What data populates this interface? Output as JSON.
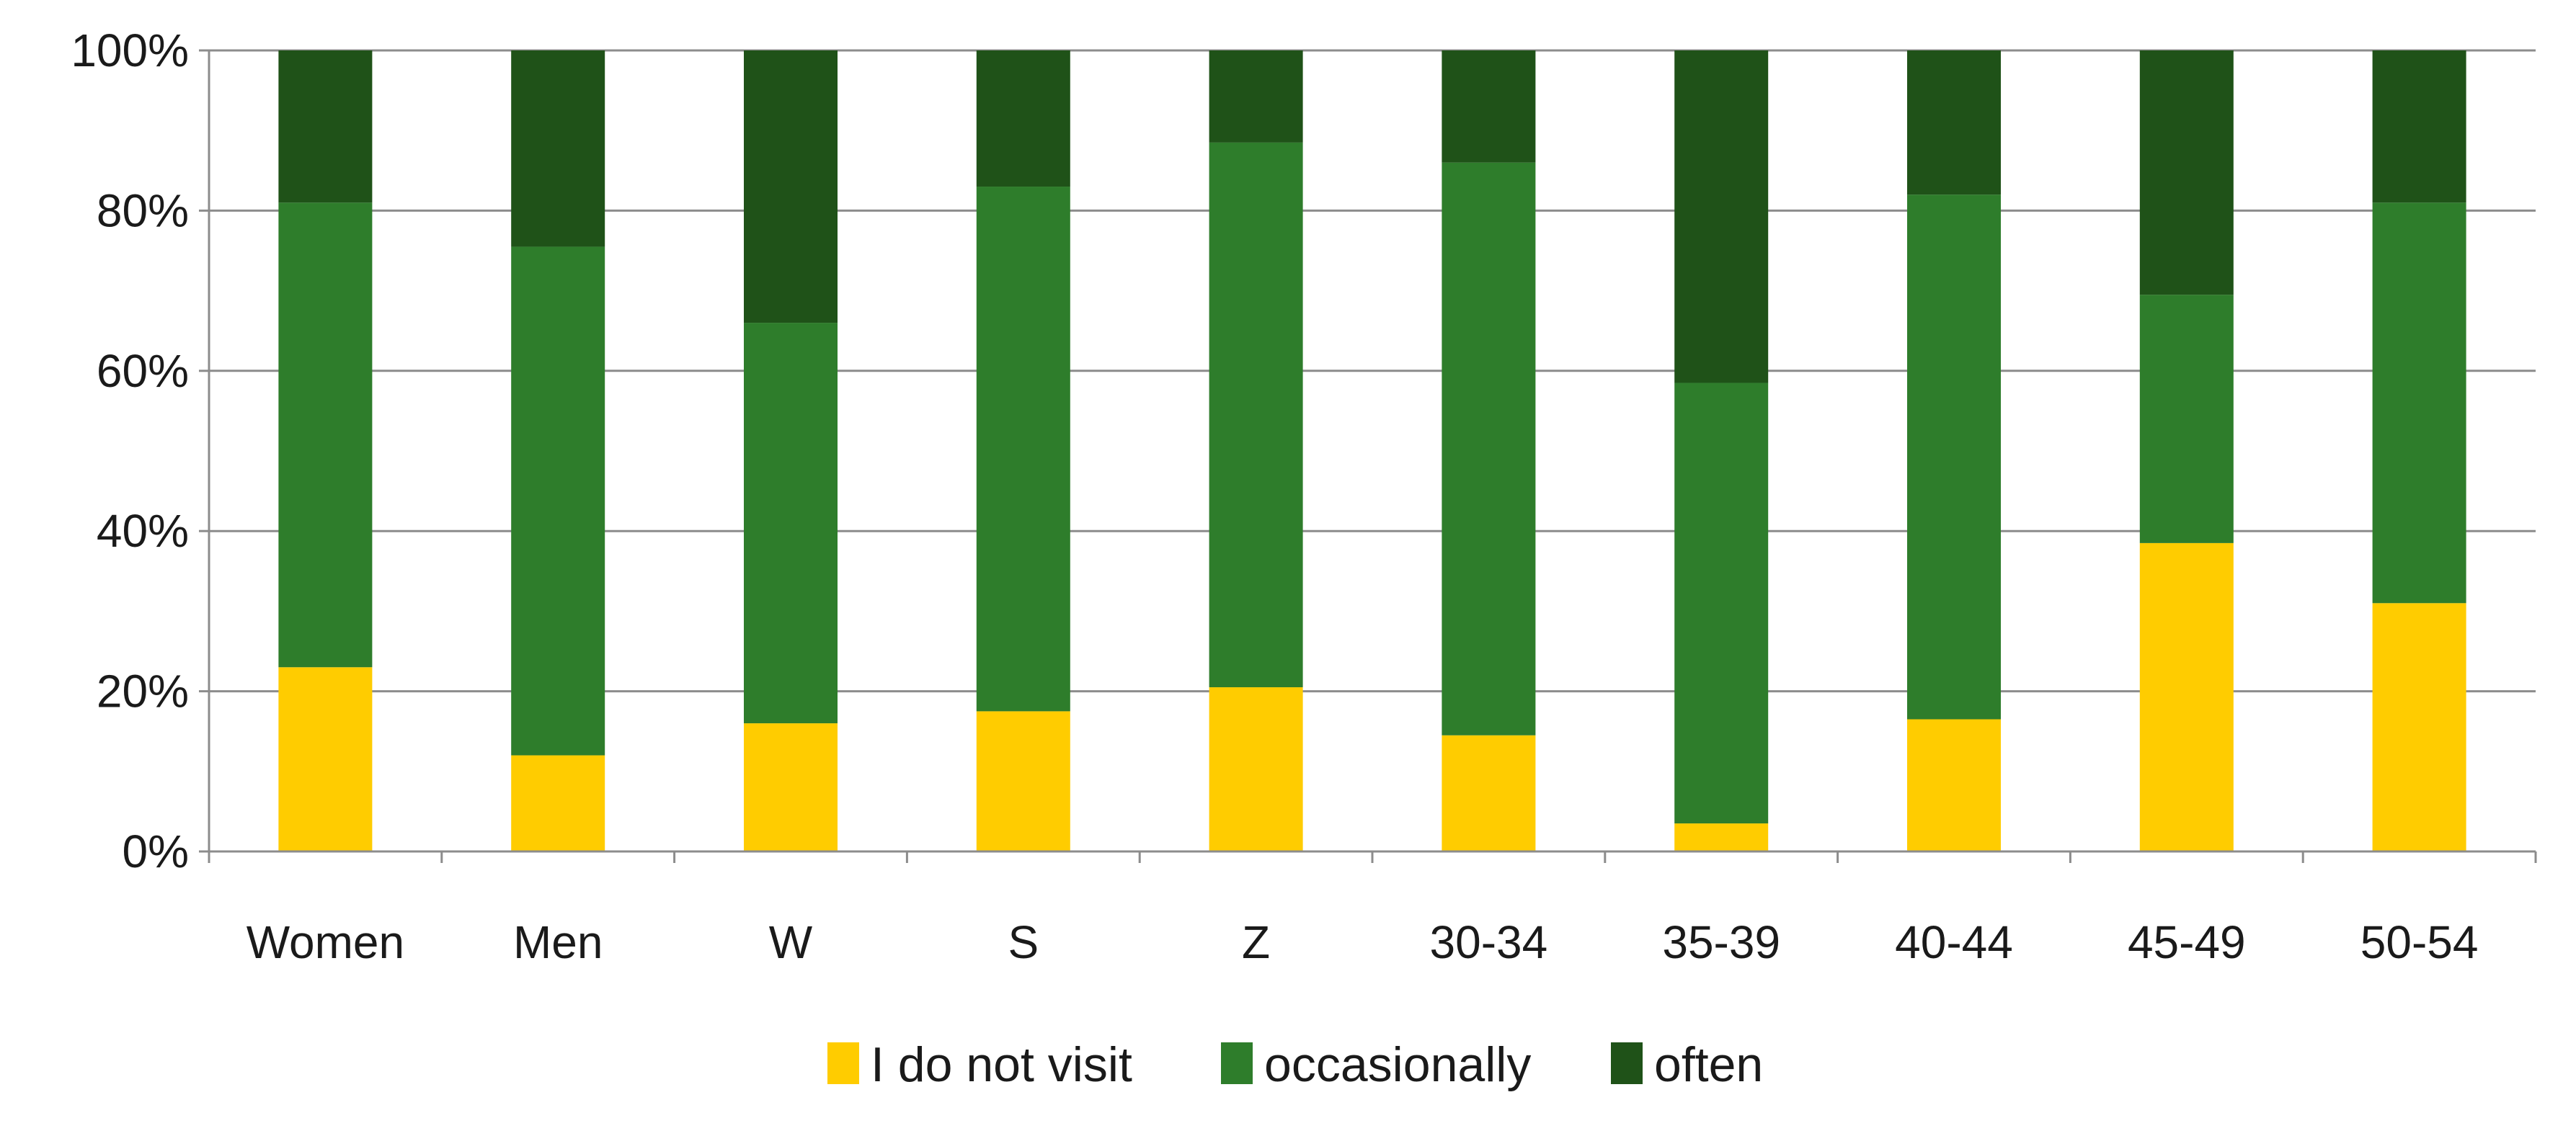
{
  "chart_data": {
    "type": "bar",
    "stacked": true,
    "percent_stacked": true,
    "categories": [
      "Women",
      "Men",
      "W",
      "S",
      "Z",
      "30-34",
      "35-39",
      "40-44",
      "45-49",
      "50-54"
    ],
    "series": [
      {
        "name": "I do not visit",
        "color": "#FFCC00",
        "values": [
          23,
          12,
          16,
          17.5,
          20.5,
          14.5,
          3.5,
          16.5,
          38.5,
          31
        ]
      },
      {
        "name": "occasionally",
        "color": "#2E7D2B",
        "values": [
          58,
          63.5,
          50,
          65.5,
          68,
          71.5,
          55,
          65.5,
          31,
          50
        ]
      },
      {
        "name": "often",
        "color": "#1F5218",
        "values": [
          19,
          24.5,
          34,
          17,
          11.5,
          14,
          41.5,
          18,
          30.5,
          19
        ]
      }
    ],
    "y_ticks": [
      "0%",
      "20%",
      "40%",
      "60%",
      "80%",
      "100%"
    ],
    "ylim": [
      0,
      100
    ],
    "grid": true,
    "legend_position": "bottom"
  }
}
